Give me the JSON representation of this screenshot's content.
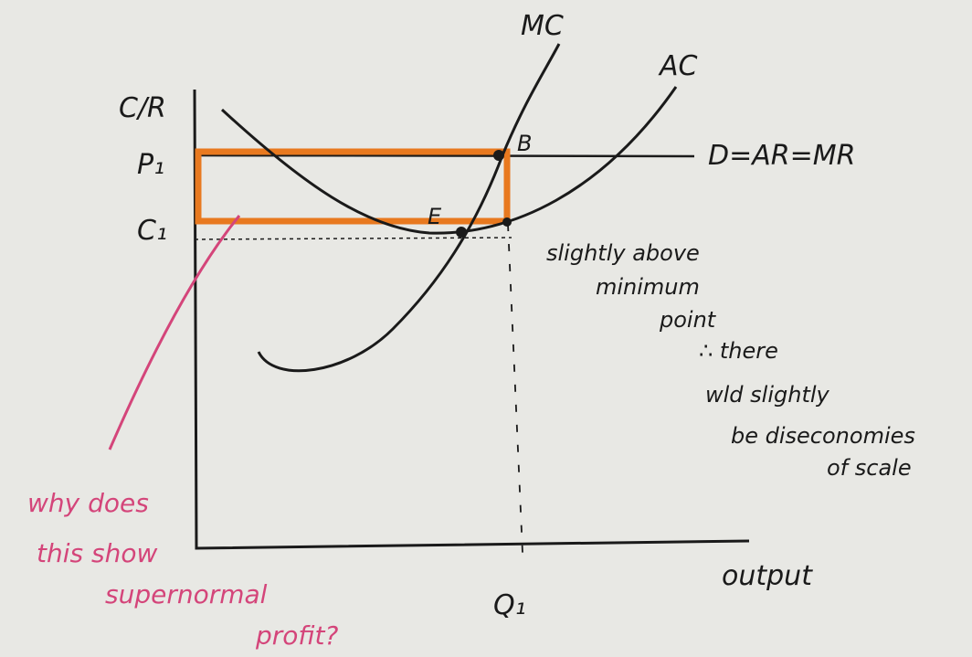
{
  "axis_labels": {
    "y": "C/R",
    "x": "output",
    "p1": "P₁",
    "c1": "C₁",
    "q1": "Q₁"
  },
  "curve_labels": {
    "mc": "MC",
    "ac": "AC",
    "demand": "D=AR=MR",
    "point_b": "B",
    "point_e": "E"
  },
  "notes": {
    "above_min": [
      "slightly above",
      "minimum",
      "point"
    ],
    "diseconomies": [
      "∴ there",
      "wld slightly",
      "be diseconomies",
      "of scale"
    ]
  },
  "question": [
    "why does",
    "this show",
    "supernormal",
    "profit?"
  ]
}
